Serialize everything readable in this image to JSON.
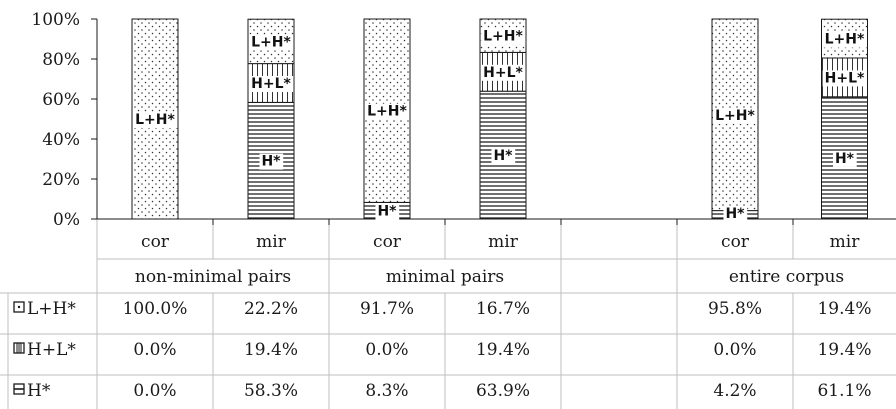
{
  "chart_data": {
    "type": "bar",
    "stacked": true,
    "percent": true,
    "ylim": [
      0,
      100
    ],
    "y_ticks": [
      "0%",
      "20%",
      "40%",
      "60%",
      "80%",
      "100%"
    ],
    "groups": [
      {
        "label": "non-minimal pairs",
        "categories": [
          "cor",
          "mir"
        ]
      },
      {
        "label": "minimal pairs",
        "categories": [
          "cor",
          "mir"
        ]
      },
      {
        "label": "",
        "categories": [
          ""
        ]
      },
      {
        "label": "entire corpus",
        "categories": [
          "cor",
          "mir"
        ]
      }
    ],
    "categories": [
      "cor",
      "mir",
      "cor",
      "mir",
      "",
      "cor",
      "mir"
    ],
    "series": [
      {
        "name": "L+H*",
        "pattern": "dots",
        "values": [
          100.0,
          22.2,
          91.7,
          16.7,
          null,
          95.8,
          19.4
        ],
        "display": [
          "100.0%",
          "22.2%",
          "91.7%",
          "16.7%",
          "",
          "95.8%",
          "19.4%"
        ]
      },
      {
        "name": "H+L*",
        "pattern": "vertical",
        "values": [
          0.0,
          19.4,
          0.0,
          19.4,
          null,
          0.0,
          19.4
        ],
        "display": [
          "0.0%",
          "19.4%",
          "0.0%",
          "19.4%",
          "",
          "0.0%",
          "19.4%"
        ]
      },
      {
        "name": "H*",
        "pattern": "horizontal",
        "values": [
          0.0,
          58.3,
          8.3,
          63.9,
          null,
          4.2,
          61.1
        ],
        "display": [
          "0.0%",
          "58.3%",
          "8.3%",
          "63.9%",
          "",
          "4.2%",
          "61.1%"
        ]
      }
    ],
    "legend": "table",
    "grid": false,
    "colors": {
      "line": "#1a1a1a",
      "table_border": "#bfbfbf",
      "bar_fill": "#ffffff"
    }
  }
}
